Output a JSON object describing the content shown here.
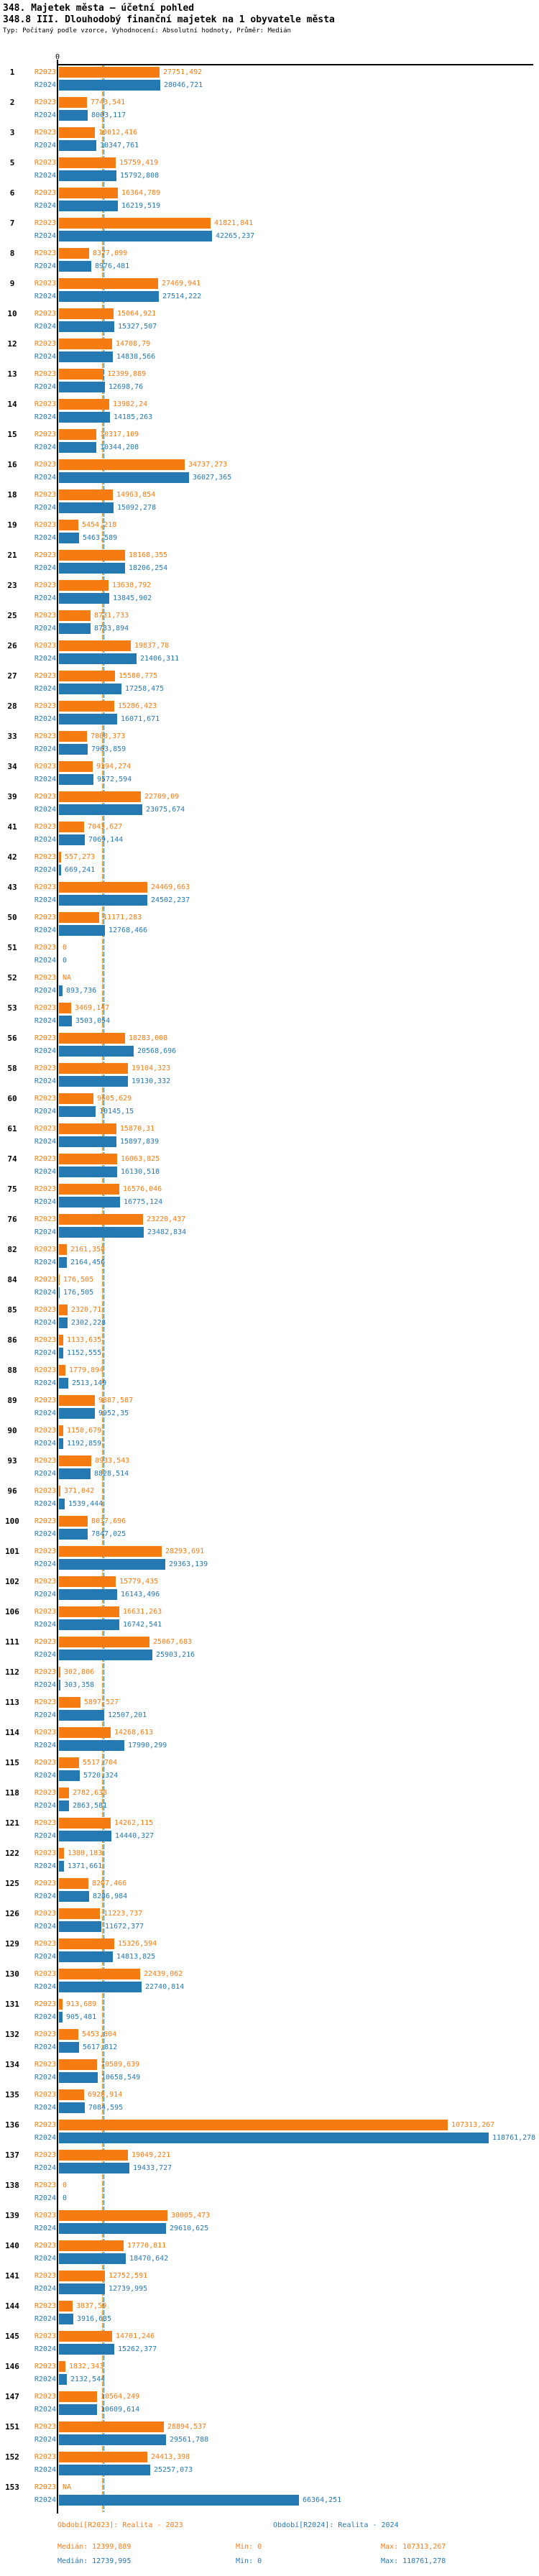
{
  "title": "348. Majetek města – účetní pohled",
  "subtitle": "348.8 III. Dlouhodobý finanční majetek na 1 obyvatele města",
  "meta": "Typ: Počítaný podle vzorce, Vyhodnocení: Absolutní hodnoty, Průměr: Medián",
  "colors": {
    "r2023": "#f67c12",
    "r2024": "#2579b2",
    "axis": "#000000"
  },
  "chart_data": {
    "type": "bar",
    "orientation": "horizontal",
    "series_labels": [
      "R2023",
      "R2024"
    ],
    "axis_zero_label": "0",
    "units_per_pixel": 198.5,
    "medians": {
      "r2023": 12399.889,
      "r2024": 12739.995
    },
    "rows": [
      {
        "id": "1",
        "r2023": "27751,492",
        "r2024": "28046,721"
      },
      {
        "id": "2",
        "r2023": "7743,541",
        "r2024": "8003,117"
      },
      {
        "id": "3",
        "r2023": "10012,416",
        "r2024": "10347,761"
      },
      {
        "id": "5",
        "r2023": "15759,419",
        "r2024": "15792,808"
      },
      {
        "id": "6",
        "r2023": "16364,789",
        "r2024": "16219,519"
      },
      {
        "id": "7",
        "r2023": "41821,841",
        "r2024": "42265,237"
      },
      {
        "id": "8",
        "r2023": "8377,099",
        "r2024": "8976,481"
      },
      {
        "id": "9",
        "r2023": "27469,941",
        "r2024": "27514,222"
      },
      {
        "id": "10",
        "r2023": "15064,921",
        "r2024": "15327,507"
      },
      {
        "id": "12",
        "r2023": "14708,79",
        "r2024": "14838,566"
      },
      {
        "id": "13",
        "r2023": "12399,889",
        "r2024": "12698,76"
      },
      {
        "id": "14",
        "r2023": "13982,24",
        "r2024": "14185,263"
      },
      {
        "id": "15",
        "r2023": "10317,109",
        "r2024": "10344,208"
      },
      {
        "id": "16",
        "r2023": "34737,273",
        "r2024": "36027,365"
      },
      {
        "id": "18",
        "r2023": "14963,854",
        "r2024": "15092,278"
      },
      {
        "id": "19",
        "r2023": "5454,218",
        "r2024": "5463,589"
      },
      {
        "id": "21",
        "r2023": "18168,355",
        "r2024": "18206,254"
      },
      {
        "id": "23",
        "r2023": "13638,792",
        "r2024": "13845,902"
      },
      {
        "id": "25",
        "r2023": "8731,733",
        "r2024": "8783,894"
      },
      {
        "id": "26",
        "r2023": "19837,78",
        "r2024": "21406,311"
      },
      {
        "id": "27",
        "r2023": "15580,775",
        "r2024": "17258,475"
      },
      {
        "id": "28",
        "r2023": "15286,423",
        "r2024": "16071,671"
      },
      {
        "id": "33",
        "r2023": "7808,373",
        "r2024": "7963,859"
      },
      {
        "id": "34",
        "r2023": "9394,274",
        "r2024": "9572,594"
      },
      {
        "id": "39",
        "r2023": "22709,09",
        "r2024": "23075,674"
      },
      {
        "id": "41",
        "r2023": "7043,627",
        "r2024": "7069,144"
      },
      {
        "id": "42",
        "r2023": "557,273",
        "r2024": "669,241"
      },
      {
        "id": "43",
        "r2023": "24469,663",
        "r2024": "24502,237"
      },
      {
        "id": "50",
        "r2023": "11171,283",
        "r2024": "12768,466"
      },
      {
        "id": "51",
        "r2023": "0",
        "r2024": "0"
      },
      {
        "id": "52",
        "r2023": "NA",
        "r2024": "893,736"
      },
      {
        "id": "53",
        "r2023": "3469,147",
        "r2024": "3503,054"
      },
      {
        "id": "56",
        "r2023": "18283,008",
        "r2024": "20568,696"
      },
      {
        "id": "58",
        "r2023": "19104,323",
        "r2024": "19130,332"
      },
      {
        "id": "60",
        "r2023": "9605,629",
        "r2024": "10145,15"
      },
      {
        "id": "61",
        "r2023": "15870,31",
        "r2024": "15897,839"
      },
      {
        "id": "74",
        "r2023": "16063,825",
        "r2024": "16130,518"
      },
      {
        "id": "75",
        "r2023": "16576,046",
        "r2024": "16775,124"
      },
      {
        "id": "76",
        "r2023": "23220,437",
        "r2024": "23482,834"
      },
      {
        "id": "82",
        "r2023": "2161,358",
        "r2024": "2164,456"
      },
      {
        "id": "84",
        "r2023": "176,505",
        "r2024": "176,505"
      },
      {
        "id": "85",
        "r2023": "2320,71",
        "r2024": "2302,228"
      },
      {
        "id": "86",
        "r2023": "1133,635",
        "r2024": "1152,555"
      },
      {
        "id": "88",
        "r2023": "1779,894",
        "r2024": "2513,149"
      },
      {
        "id": "89",
        "r2023": "9887,587",
        "r2024": "9952,35"
      },
      {
        "id": "90",
        "r2023": "1150,679",
        "r2024": "1192,859"
      },
      {
        "id": "93",
        "r2023": "8933,543",
        "r2024": "8828,514"
      },
      {
        "id": "96",
        "r2023": "371,042",
        "r2024": "1539,444"
      },
      {
        "id": "100",
        "r2023": "8017,696",
        "r2024": "7847,025"
      },
      {
        "id": "101",
        "r2023": "28293,691",
        "r2024": "29363,139"
      },
      {
        "id": "102",
        "r2023": "15779,435",
        "r2024": "16143,496"
      },
      {
        "id": "106",
        "r2023": "16631,263",
        "r2024": "16742,541"
      },
      {
        "id": "111",
        "r2023": "25067,683",
        "r2024": "25903,216"
      },
      {
        "id": "112",
        "r2023": "302,806",
        "r2024": "303,358"
      },
      {
        "id": "113",
        "r2023": "5897,527",
        "r2024": "12507,201"
      },
      {
        "id": "114",
        "r2023": "14268,613",
        "r2024": "17990,299"
      },
      {
        "id": "115",
        "r2023": "5517,704",
        "r2024": "5720,324"
      },
      {
        "id": "118",
        "r2023": "2782,638",
        "r2024": "2863,581"
      },
      {
        "id": "121",
        "r2023": "14262,115",
        "r2024": "14440,327"
      },
      {
        "id": "122",
        "r2023": "1380,183",
        "r2024": "1371,661"
      },
      {
        "id": "125",
        "r2023": "8207,466",
        "r2024": "8286,984"
      },
      {
        "id": "126",
        "r2023": "11223,737",
        "r2024": "11672,377"
      },
      {
        "id": "129",
        "r2023": "15326,594",
        "r2024": "14813,825"
      },
      {
        "id": "130",
        "r2023": "22439,062",
        "r2024": "22740,814"
      },
      {
        "id": "131",
        "r2023": "913,689",
        "r2024": "905,481"
      },
      {
        "id": "132",
        "r2023": "5453,804",
        "r2024": "5617,812"
      },
      {
        "id": "134",
        "r2023": "10589,639",
        "r2024": "10658,549"
      },
      {
        "id": "135",
        "r2023": "6928,914",
        "r2024": "7084,595"
      },
      {
        "id": "136",
        "r2023": "107313,267",
        "r2024": "118761,278"
      },
      {
        "id": "137",
        "r2023": "19049,221",
        "r2024": "19433,727"
      },
      {
        "id": "138",
        "r2023": "0",
        "r2024": "0"
      },
      {
        "id": "139",
        "r2023": "30005,473",
        "r2024": "29610,625"
      },
      {
        "id": "140",
        "r2023": "17770,811",
        "r2024": "18470,642"
      },
      {
        "id": "141",
        "r2023": "12752,591",
        "r2024": "12739,995"
      },
      {
        "id": "144",
        "r2023": "3837,59",
        "r2024": "3916,635"
      },
      {
        "id": "145",
        "r2023": "14701,246",
        "r2024": "15262,377"
      },
      {
        "id": "146",
        "r2023": "1832,343",
        "r2024": "2132,544"
      },
      {
        "id": "147",
        "r2023": "10564,249",
        "r2024": "10609,614"
      },
      {
        "id": "151",
        "r2023": "28894,537",
        "r2024": "29561,788"
      },
      {
        "id": "152",
        "r2023": "24413,398",
        "r2024": "25257,073"
      },
      {
        "id": "153",
        "r2023": "NA",
        "r2024": "66364,251"
      }
    ]
  },
  "footer": {
    "period_2023": "Období[R2023]: Realita - 2023",
    "period_2024": "Období[R2024]: Realita - 2024",
    "median_2023": "Medián: 12399,889",
    "min_2023": "Min: 0",
    "max_2023": "Max: 107313,267",
    "median_2024": "Medián: 12739,995",
    "min_2024": "Min: 0",
    "max_2024": "Max: 118761,278"
  }
}
